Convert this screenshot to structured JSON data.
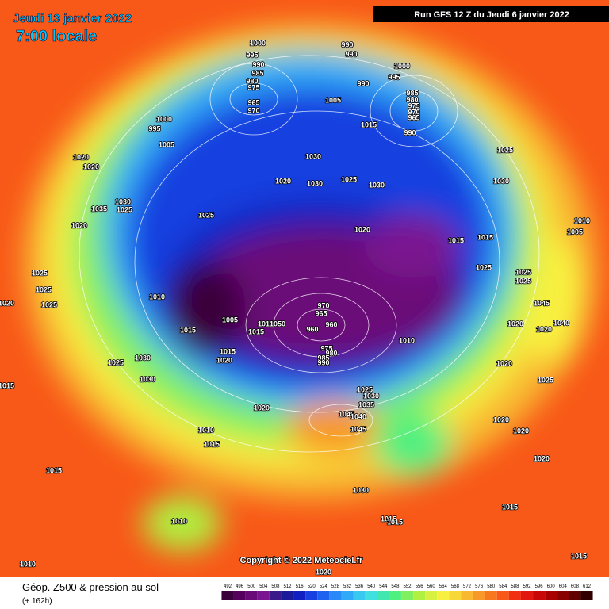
{
  "header": {
    "date": "Jeudi 13 janvier 2022",
    "time": "7:00 locale",
    "run": "Run GFS 12 Z du Jeudi 6 janvier 2022"
  },
  "map": {
    "copyright": "Copyright © 2022 Meteociel.fr",
    "isobar_labels": [
      "1000",
      "995",
      "990",
      "985",
      "980",
      "975",
      "965",
      "970",
      "990",
      "990",
      "1000",
      "995",
      "990",
      "985",
      "980",
      "975",
      "970",
      "965",
      "1005",
      "1015",
      "990",
      "1000",
      "995",
      "1005",
      "1025",
      "1020",
      "1020",
      "1030",
      "1030",
      "1025",
      "1030",
      "1030",
      "1020",
      "1030",
      "1025",
      "1035",
      "1020",
      "1025",
      "1020",
      "1010",
      "1005",
      "1015",
      "1015",
      "1025",
      "1025",
      "1025",
      "1025",
      "1025",
      "1025",
      "1020",
      "1010",
      "970",
      "965",
      "960",
      "960",
      "1015",
      "1005",
      "1010",
      "1050",
      "1015",
      "1015",
      "1020",
      "975",
      "980",
      "985",
      "990",
      "1010",
      "1045",
      "1040",
      "1020",
      "1020",
      "1025",
      "1030",
      "1030",
      "1015",
      "1025",
      "1030",
      "1035",
      "1020",
      "1025",
      "1020",
      "1045",
      "1040",
      "1045",
      "1020",
      "1020",
      "1010",
      "1015",
      "1020",
      "1015",
      "1030",
      "1010",
      "1015",
      "1015",
      "1015",
      "1015",
      "1010",
      "1020"
    ]
  },
  "legend": {
    "title": "Géop. Z500 & pression au sol",
    "subtitle": "(+ 162h)",
    "colorbar": {
      "ticks": [
        492,
        496,
        500,
        504,
        508,
        512,
        516,
        520,
        524,
        528,
        532,
        536,
        540,
        544,
        548,
        552,
        556,
        560,
        564,
        568,
        572,
        576,
        580,
        584,
        588,
        592,
        596,
        600,
        604,
        608,
        612
      ],
      "colors": [
        "#3a003a",
        "#55005a",
        "#6a0a78",
        "#7a1490",
        "#3a1a8a",
        "#1a1a9a",
        "#1020c0",
        "#1840e0",
        "#1e60f0",
        "#2a88f8",
        "#30aaf8",
        "#38c8f0",
        "#40e0e0",
        "#40e8b0",
        "#50f080",
        "#80f060",
        "#b0f040",
        "#d8f040",
        "#f8f040",
        "#f8d838",
        "#f8b830",
        "#f89828",
        "#f87820",
        "#f85818",
        "#f03010",
        "#e01810",
        "#c80808",
        "#a80000",
        "#880000",
        "#600000",
        "#300000"
      ]
    }
  }
}
